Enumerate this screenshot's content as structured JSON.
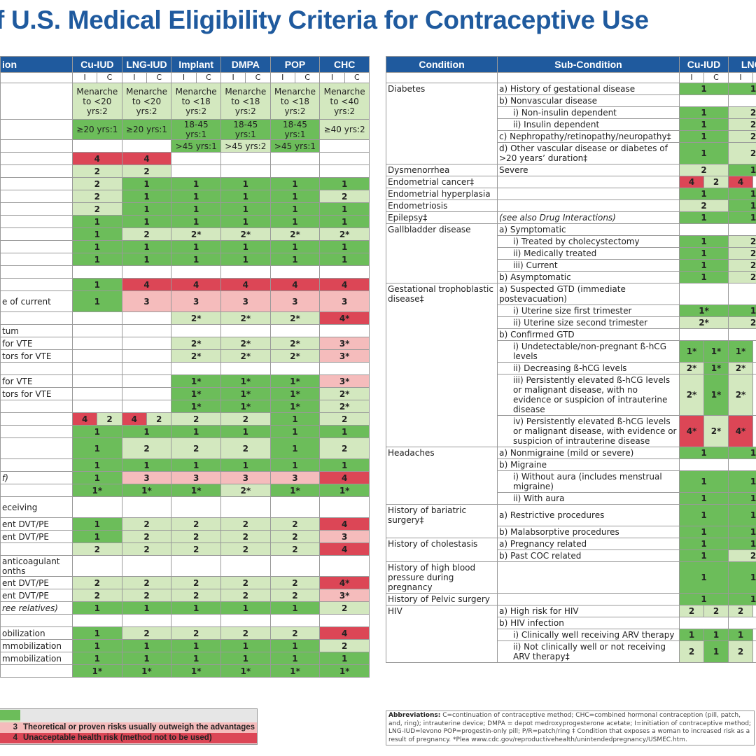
{
  "title": "f U.S. Medical Eligibility Criteria for Contraceptive Use",
  "palette": {
    "1": "#6cbd5a",
    "2": "#d3e8bf",
    "3": "#f5bcbc",
    "4": "#dc4656"
  },
  "left_table": {
    "header": [
      "ion",
      "Cu-IUD",
      "LNG-IUD",
      "Implant",
      "DMPA",
      "POP",
      "CHC"
    ],
    "subheader": [
      "I",
      "C"
    ],
    "rows": [
      {
        "cells": [
          "Menarche to <20 yrs:2",
          "Menarche to <20 yrs:2",
          "Menarche to <18 yrs:2",
          "Menarche to <18 yrs:2",
          "Menarche to <18 yrs:2",
          "Menarche to <40 yrs:2"
        ]
      },
      {
        "cells": [
          "≥20 yrs:1",
          "≥20 yrs:1",
          "18-45 yrs:1",
          "18-45 yrs:1",
          "18-45 yrs:1",
          "≥40 yrs:2"
        ]
      },
      {
        "cells": [
          null,
          null,
          ">45 yrs:1",
          ">45 yrs:2",
          ">45 yrs:1",
          null
        ]
      },
      {
        "cells": [
          "4",
          "4",
          null,
          null,
          null,
          null
        ]
      },
      {
        "cells": [
          "2",
          "2",
          null,
          null,
          null,
          null
        ]
      },
      {
        "cells": [
          "2",
          "1",
          "1",
          "1",
          "1",
          "1"
        ]
      },
      {
        "cells": [
          "2",
          "1",
          "1",
          "1",
          "1",
          "2"
        ]
      },
      {
        "cells": [
          "2",
          "1",
          "1",
          "1",
          "1",
          "1"
        ]
      },
      {
        "cells": [
          "1",
          "1",
          "1",
          "1",
          "1",
          "1"
        ]
      },
      {
        "cells": [
          "1",
          "2",
          "2*",
          "2*",
          "2*",
          "2*"
        ]
      },
      {
        "cells": [
          "1",
          "1",
          "1",
          "1",
          "1",
          "1"
        ]
      },
      {
        "cells": [
          "1",
          "1",
          "1",
          "1",
          "1",
          "1"
        ]
      },
      {
        "cells": [
          null,
          null,
          null,
          null,
          null,
          null
        ]
      },
      {
        "cells": [
          "1",
          "4",
          "4",
          "4",
          "4",
          "4"
        ]
      },
      {
        "label": "e of current",
        "cells": [
          "1",
          "3",
          "3",
          "3",
          "3",
          "3"
        ]
      },
      {
        "cells": [
          null,
          null,
          "2*",
          "2*",
          "2*",
          "4*"
        ]
      },
      {
        "label": "tum",
        "cells": [
          null,
          null,
          null,
          null,
          null,
          null
        ]
      },
      {
        "label": "for VTE",
        "cells": [
          null,
          null,
          "2*",
          "2*",
          "2*",
          "3*"
        ]
      },
      {
        "label": "tors for VTE",
        "cells": [
          null,
          null,
          "2*",
          "2*",
          "2*",
          "3*"
        ]
      },
      {
        "cells": [
          null,
          null,
          null,
          null,
          null,
          null
        ]
      },
      {
        "label": "for VTE",
        "cells": [
          null,
          null,
          "1*",
          "1*",
          "1*",
          "3*"
        ]
      },
      {
        "label": "tors for VTE",
        "cells": [
          null,
          null,
          "1*",
          "1*",
          "1*",
          "2*"
        ]
      },
      {
        "cells": [
          null,
          null,
          "1*",
          "1*",
          "1*",
          "2*"
        ]
      },
      {
        "cells": [
          [
            "4",
            "2"
          ],
          [
            "4",
            "2"
          ],
          "2",
          "2",
          "1",
          "2"
        ]
      },
      {
        "cells": [
          "1",
          "1",
          "1",
          "1",
          "1",
          "1"
        ]
      },
      {
        "cells": [
          "1",
          "2",
          "2",
          "2",
          "1",
          "2"
        ]
      },
      {
        "cells": [
          "1",
          "1",
          "1",
          "1",
          "1",
          "1"
        ]
      },
      {
        "label": "f)",
        "cells": [
          "1",
          "3",
          "3",
          "3",
          "3",
          "4"
        ]
      },
      {
        "cells": [
          "1*",
          "1*",
          "1*",
          "2*",
          "1*",
          "1*"
        ]
      },
      {
        "label": "eceiving",
        "cells": [
          null,
          null,
          null,
          null,
          null,
          null
        ]
      },
      {
        "label": "ent DVT/PE",
        "cells": [
          "1",
          "2",
          "2",
          "2",
          "2",
          "4"
        ]
      },
      {
        "label": "ent DVT/PE",
        "cells": [
          "1",
          "2",
          "2",
          "2",
          "2",
          "3"
        ]
      },
      {
        "cells": [
          "2",
          "2",
          "2",
          "2",
          "2",
          "4"
        ]
      },
      {
        "label": "anticoagulant onths",
        "cells": [
          null,
          null,
          null,
          null,
          null,
          null
        ]
      },
      {
        "label": "ent DVT/PE",
        "cells": [
          "2",
          "2",
          "2",
          "2",
          "2",
          "4*"
        ]
      },
      {
        "label": "ent DVT/PE",
        "cells": [
          "2",
          "2",
          "2",
          "2",
          "2",
          "3*"
        ]
      },
      {
        "label": "ree relatives)",
        "cells": [
          "1",
          "1",
          "1",
          "1",
          "1",
          "2"
        ]
      },
      {
        "cells": [
          null,
          null,
          null,
          null,
          null,
          null
        ]
      },
      {
        "label": "obilization",
        "cells": [
          "1",
          "2",
          "2",
          "2",
          "2",
          "4"
        ]
      },
      {
        "label": "mmobilization",
        "cells": [
          "1",
          "1",
          "1",
          "1",
          "1",
          "2"
        ]
      },
      {
        "label": "mmobilization",
        "cells": [
          "1",
          "1",
          "1",
          "1",
          "1",
          "1"
        ]
      },
      {
        "cells": [
          "1*",
          "1*",
          "1*",
          "1*",
          "1*",
          "1*"
        ]
      }
    ]
  },
  "right_table": {
    "header": [
      "Condition",
      "Sub-Condition",
      "Cu-IUD",
      "LNG-"
    ],
    "subheader": [
      "I",
      "C"
    ],
    "rows": [
      {
        "condition": "Diabetes",
        "sub": "a) History of gestational disease",
        "cells": [
          "1",
          "1"
        ]
      },
      {
        "sub": "b) Nonvascular disease",
        "cells": [
          null,
          null
        ]
      },
      {
        "sub": "i) Non-insulin dependent",
        "cells": [
          "1",
          "2"
        ]
      },
      {
        "sub": "ii) Insulin dependent",
        "cells": [
          "1",
          "2"
        ]
      },
      {
        "sub": "c) Nephropathy/retinopathy/neuropathy‡",
        "cells": [
          "1",
          "2"
        ]
      },
      {
        "sub": "d) Other vascular disease or diabetes of >20 years’ duration‡",
        "cells": [
          "1",
          "2"
        ]
      },
      {
        "condition": "Dysmenorrhea",
        "sub": "Severe",
        "cells": [
          "2",
          "1"
        ]
      },
      {
        "condition": "Endometrial cancer‡",
        "cells": [
          [
            "4",
            "2"
          ],
          [
            "4"
          ]
        ]
      },
      {
        "condition": "Endometrial hyperplasia",
        "cells": [
          "1",
          "1"
        ]
      },
      {
        "condition": "Endometriosis",
        "cells": [
          "2",
          "1"
        ]
      },
      {
        "condition": "Epilepsy‡",
        "sub": "(see also Drug Interactions)",
        "cells": [
          "1",
          "1"
        ]
      },
      {
        "condition": "Gallbladder disease",
        "sub": "a) Symptomatic",
        "cells": [
          null,
          null
        ]
      },
      {
        "sub": "i) Treated by cholecystectomy",
        "cells": [
          "1",
          "2"
        ]
      },
      {
        "sub": "ii) Medically treated",
        "cells": [
          "1",
          "2"
        ]
      },
      {
        "sub": "iii) Current",
        "cells": [
          "1",
          "2"
        ]
      },
      {
        "sub": "b) Asymptomatic",
        "cells": [
          "1",
          "2"
        ]
      },
      {
        "condition": "Gestational trophoblastic disease‡",
        "sub": "a) Suspected GTD (immediate postevacuation)",
        "cells": [
          null,
          null
        ]
      },
      {
        "sub": "i) Uterine size first trimester",
        "cells": [
          "1*",
          "1"
        ]
      },
      {
        "sub": "ii) Uterine size second trimester",
        "cells": [
          "2*",
          "2"
        ]
      },
      {
        "sub": "b) Confirmed GTD",
        "cells": [
          null,
          null
        ]
      },
      {
        "sub": "i) Undetectable/non-pregnant ß-hCG levels",
        "cells": [
          [
            "1*",
            "1*"
          ],
          [
            "1*"
          ]
        ]
      },
      {
        "sub": "ii) Decreasing ß-hCG levels",
        "cells": [
          [
            "2*",
            "1*"
          ],
          [
            "2*"
          ]
        ]
      },
      {
        "sub": "iii) Persistently elevated ß-hCG levels or malignant disease, with no evidence or suspicion of intrauterine disease",
        "cells": [
          [
            "2*",
            "1*"
          ],
          [
            "2*"
          ]
        ]
      },
      {
        "sub": "iv) Persistently elevated ß-hCG levels or malignant disease, with evidence or suspicion of intrauterine disease",
        "cells": [
          [
            "4*",
            "2*"
          ],
          [
            "4*"
          ]
        ]
      },
      {
        "condition": "Headaches",
        "sub": "a) Nonmigraine (mild or severe)",
        "cells": [
          "1",
          "1"
        ]
      },
      {
        "sub": "b) Migraine",
        "cells": [
          null,
          null
        ]
      },
      {
        "sub": "i) Without aura (includes menstrual migraine)",
        "cells": [
          "1",
          "1"
        ]
      },
      {
        "sub": "ii) With aura",
        "cells": [
          "1",
          "1"
        ]
      },
      {
        "condition": "History of bariatric surgery‡",
        "sub": "a) Restrictive procedures",
        "cells": [
          "1",
          "1"
        ]
      },
      {
        "sub": "b) Malabsorptive procedures",
        "cells": [
          "1",
          "1"
        ]
      },
      {
        "condition": "History of cholestasis",
        "sub": "a) Pregnancy related",
        "cells": [
          "1",
          "1"
        ]
      },
      {
        "sub": "b) Past COC related",
        "cells": [
          "1",
          "2"
        ]
      },
      {
        "condition": "History of high blood pressure during pregnancy",
        "cells": [
          "1",
          "1"
        ]
      },
      {
        "condition": "History of Pelvic surgery",
        "cells": [
          "1",
          "1"
        ]
      },
      {
        "condition": "HIV",
        "sub": "a) High risk for HIV",
        "cells": [
          [
            "2",
            "2"
          ],
          [
            "2"
          ]
        ]
      },
      {
        "sub": "b) HIV infection",
        "cells": [
          null,
          null
        ]
      },
      {
        "sub": "i) Clinically well receiving ARV therapy",
        "cells": [
          [
            "1",
            "1"
          ],
          [
            "1"
          ]
        ]
      },
      {
        "sub": "ii) Not clinically well or not receiving ARV therapy‡",
        "cells": [
          [
            "2",
            "1"
          ],
          [
            "2"
          ]
        ]
      }
    ]
  },
  "legend": [
    {
      "key": "3",
      "label": "Theoretical or proven risks usually outweigh the advantages"
    },
    {
      "key": "4",
      "label": "Unacceptable health risk (method not to be used)"
    }
  ],
  "abbreviations": {
    "heading": "Abbreviations:",
    "text": "C=continuation of contraceptive method; CHC=combined hormonal contraception (pill, patch, and, ring); intrauterine device; DMPA = depot medroxyprogesterone acetate; I=initiation of contraceptive method; LNG-IUD=levono POP=progestin-only pill; P/R=patch/ring ‡ Condition that exposes a woman to increased risk as a result of pregnancy. *Plea www.cdc.gov/reproductivehealth/unintendedpregnancy/USMEC.htm."
  }
}
